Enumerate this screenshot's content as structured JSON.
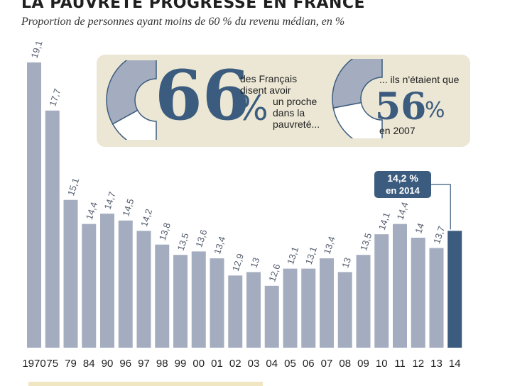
{
  "title": "LA PAUVRETÉ PROGRESSE EN FRANCE",
  "subtitle": "Proportion de personnes ayant moins de 60 % du revenu médian, en %",
  "chart_data": {
    "type": "bar",
    "title": "LA PAUVRETÉ PROGRESSE EN FRANCE",
    "subtitle": "Proportion de personnes ayant moins de 60 % du revenu médian, en %",
    "categories": [
      "1970",
      "75",
      "79",
      "84",
      "90",
      "96",
      "97",
      "98",
      "99",
      "00",
      "01",
      "02",
      "03",
      "04",
      "05",
      "06",
      "07",
      "08",
      "09",
      "10",
      "11",
      "12",
      "13",
      "14"
    ],
    "values": [
      19.1,
      17.7,
      15.1,
      14.4,
      14.7,
      14.5,
      14.2,
      13.8,
      13.5,
      13.6,
      13.4,
      12.9,
      13,
      12.6,
      13.1,
      13.1,
      13.4,
      13,
      13.5,
      14.1,
      14.4,
      14,
      13.7,
      14.2
    ],
    "value_labels": [
      "19,1",
      "17,7",
      "15,1",
      "14,4",
      "14,7",
      "14,5",
      "14,2",
      "13,8",
      "13,5",
      "13,6",
      "13,4",
      "12,9",
      "13",
      "12,6",
      "13,1",
      "13,1",
      "13,4",
      "13",
      "13,5",
      "14,1",
      "14,4",
      "14",
      "13,7",
      ""
    ],
    "highlight_index": 23,
    "ylim": [
      10.8,
      19.1
    ],
    "xlabel": "",
    "ylabel": "",
    "colors": {
      "bar": "#a4adbf",
      "highlight": "#3b5c7e",
      "info_bg": "#ece7d4"
    }
  },
  "callout": {
    "line1": "14,2 %",
    "line2": "en 2014"
  },
  "info": {
    "stat1": {
      "value": "66",
      "percent_sign": "%",
      "text_lines": [
        "des Français",
        "disent avoir",
        "un proche",
        "dans la",
        "pauvreté..."
      ],
      "fraction": 0.66
    },
    "stat2": {
      "value": "56",
      "percent_sign": "%",
      "text_before": "... ils n'étaient que",
      "text_after": "en 2007",
      "fraction": 0.56
    }
  }
}
